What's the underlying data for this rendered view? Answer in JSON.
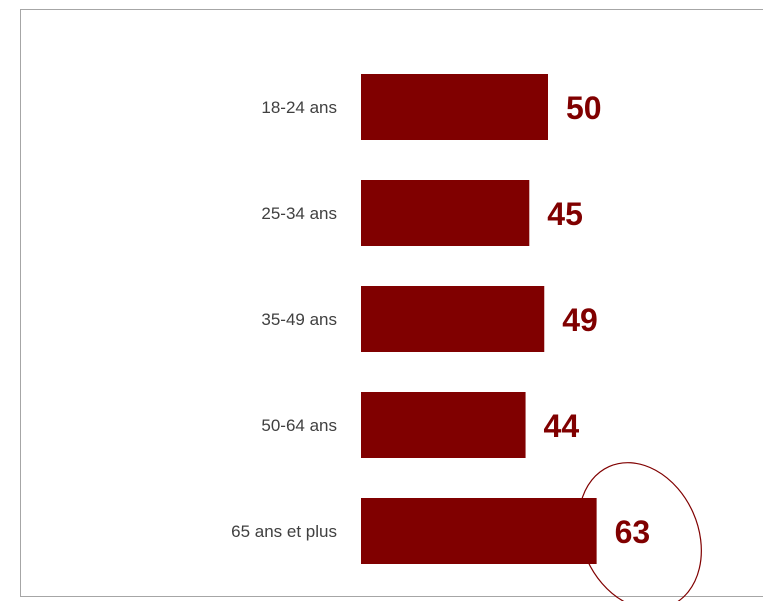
{
  "chart_data": {
    "type": "bar",
    "orientation": "horizontal",
    "categories": [
      "18-24 ans",
      "25-34 ans",
      "35-49 ans",
      "50-64 ans",
      "65 ans et plus"
    ],
    "values": [
      50,
      45,
      49,
      44,
      63
    ],
    "value_labels": [
      "50",
      "45",
      "49",
      "44",
      "63"
    ],
    "title": "",
    "xlabel": "",
    "ylabel": "",
    "xlim": [
      0,
      63
    ],
    "grid": false,
    "legend": "none",
    "highlighted_category": "65 ans et plus",
    "colors": {
      "bar": "#800000",
      "value_label": "#800000",
      "highlight_ellipse": "#800000",
      "category_label": "#404040",
      "frame": "#a6a6a6"
    }
  }
}
